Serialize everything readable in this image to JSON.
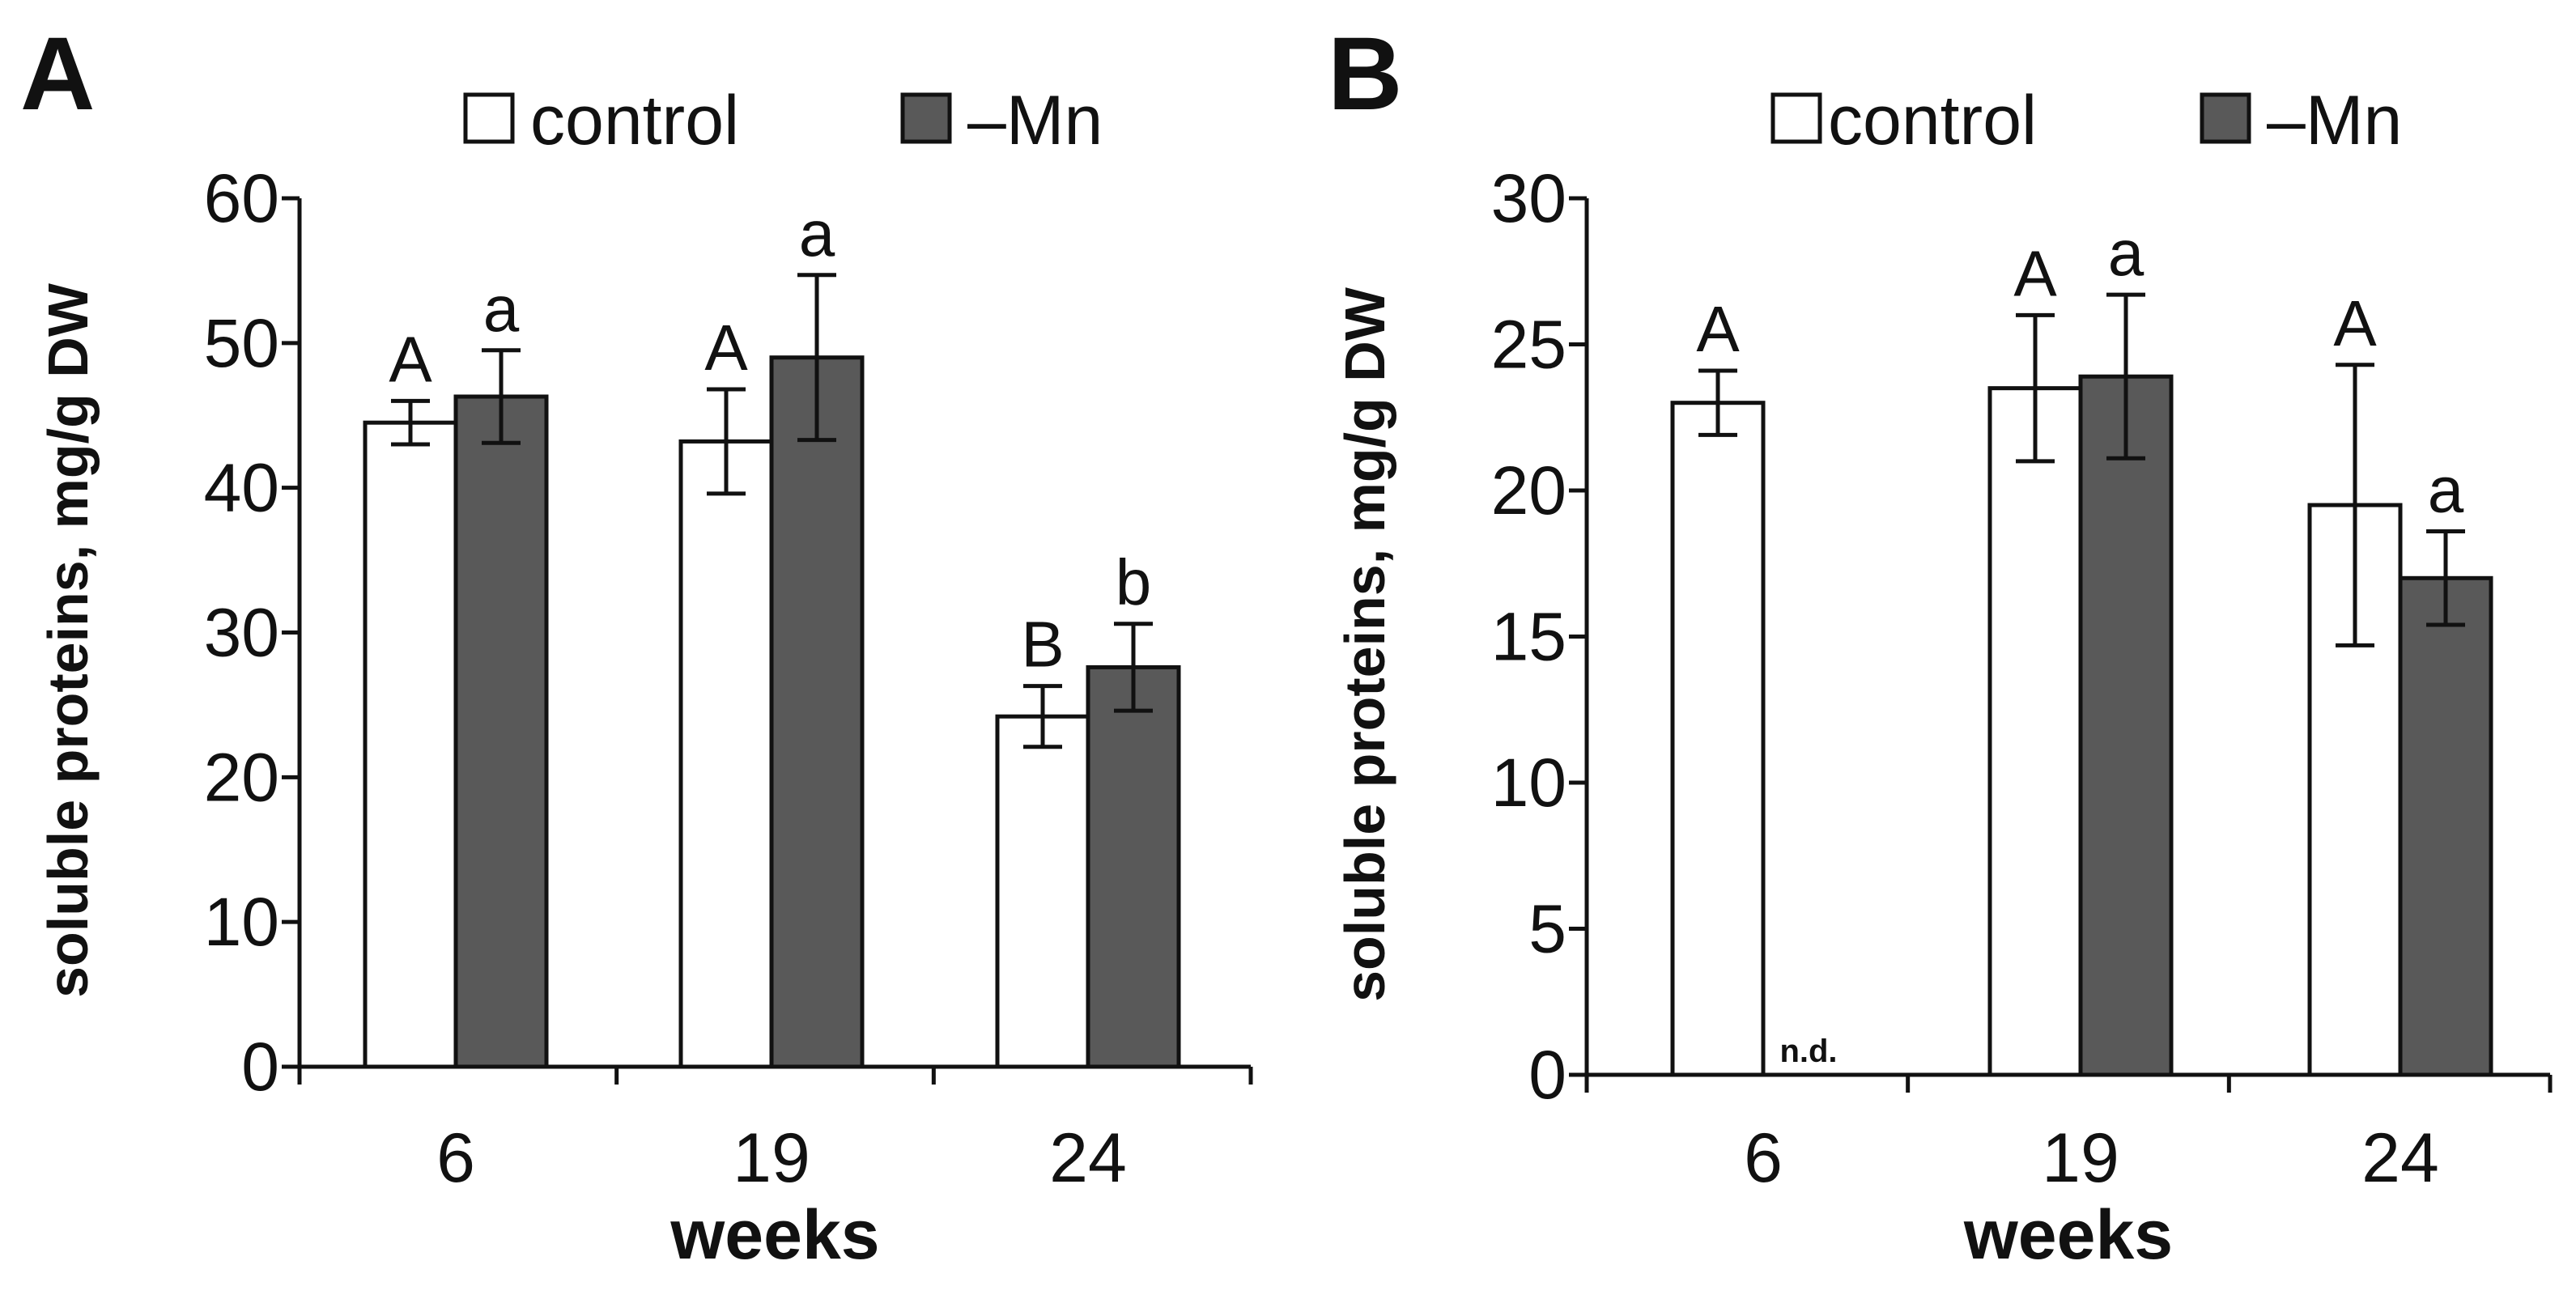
{
  "chart_data": [
    {
      "type": "bar",
      "panel": "A",
      "categories": [
        "6",
        "19",
        "24"
      ],
      "xlabel": "weeks",
      "ylabel": "soluble proteins, mg/g DW",
      "ylim": [
        0,
        60
      ],
      "yticks": [
        "0",
        "10",
        "20",
        "30",
        "40",
        "50",
        "60"
      ],
      "series": [
        {
          "name": "control",
          "values": [
            44.5,
            43.2,
            24.2
          ],
          "errors": [
            1.5,
            3.6,
            2.1
          ],
          "labels": [
            "A",
            "A",
            "B"
          ],
          "color": "#ffffff"
        },
        {
          "name": "–Mn",
          "values": [
            46.3,
            49.0,
            27.6
          ],
          "errors": [
            3.2,
            5.7,
            3.0
          ],
          "labels": [
            "a",
            "a",
            "b"
          ],
          "color": "#595959"
        }
      ],
      "legend": [
        "control",
        "–Mn"
      ]
    },
    {
      "type": "bar",
      "panel": "B",
      "categories": [
        "6",
        "19",
        "24"
      ],
      "xlabel": "weeks",
      "ylabel": "soluble proteins, mg/g DW",
      "ylim": [
        0,
        30
      ],
      "yticks": [
        "0",
        "5",
        "10",
        "15",
        "20",
        "25",
        "30"
      ],
      "series": [
        {
          "name": "control",
          "values": [
            23.0,
            23.5,
            19.5
          ],
          "errors": [
            1.1,
            2.5,
            4.8
          ],
          "labels": [
            "A",
            "A",
            "A"
          ],
          "color": "#ffffff"
        },
        {
          "name": "–Mn",
          "values": [
            null,
            23.9,
            17.0
          ],
          "errors": [
            null,
            2.8,
            1.6
          ],
          "labels": [
            "",
            "a",
            "a"
          ],
          "color": "#595959"
        }
      ],
      "nd_label": "n.d.",
      "legend": [
        "control",
        "–Mn"
      ]
    }
  ]
}
